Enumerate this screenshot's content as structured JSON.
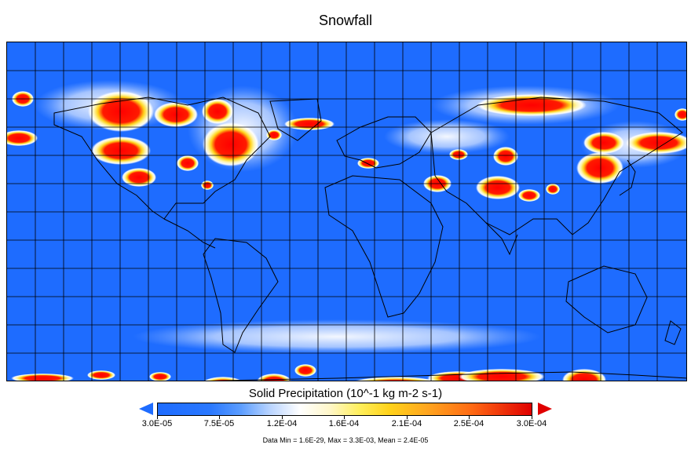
{
  "title": "Snowfall",
  "colorbar": {
    "title": "Solid Precipitation (10^-1 kg m-2 s-1)",
    "ticks": [
      "3.0E-05",
      "7.5E-05",
      "1.2E-04",
      "1.6E-04",
      "2.1E-04",
      "2.5E-04",
      "3.0E-04"
    ],
    "colors": {
      "low": "#1e6cff",
      "mid": "#ffffff",
      "high": "#e00000"
    }
  },
  "stats": "Data Min = 1.6E-29, Max = 3.3E-03, Mean = 2.4E-05",
  "map": {
    "projection": "equirectangular",
    "grid": true,
    "background_color": "#1e6cff"
  }
}
